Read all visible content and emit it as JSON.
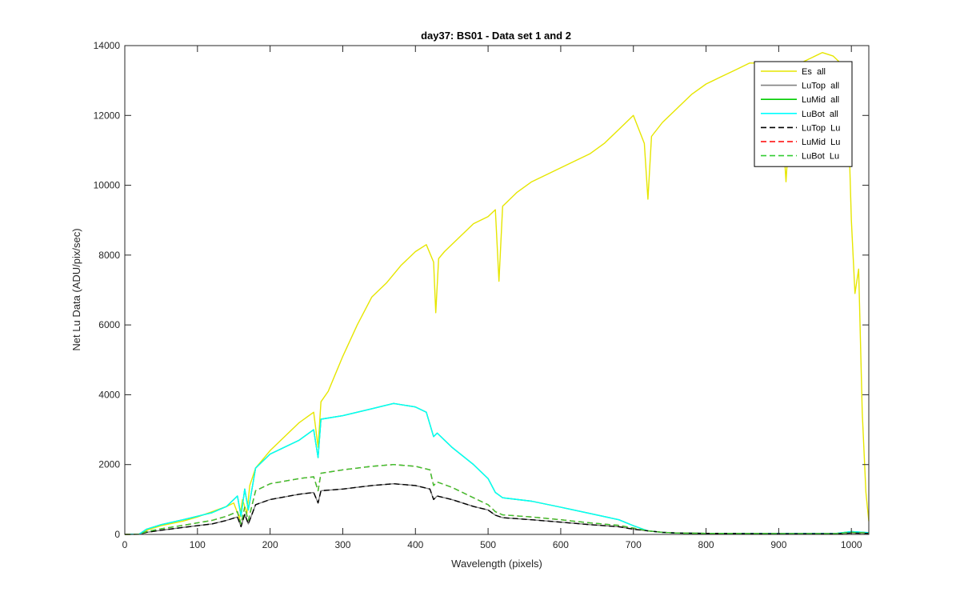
{
  "chart_data": {
    "type": "line",
    "title": "day37: BS01 - Data set 1 and 2",
    "xlabel": "Wavelength (pixels)",
    "ylabel": "Net Lu Data (ADU/pix/sec)",
    "xlim": [
      0,
      1024
    ],
    "ylim": [
      0,
      14000
    ],
    "xticks": [
      0,
      100,
      200,
      300,
      400,
      500,
      600,
      700,
      800,
      900,
      1000
    ],
    "yticks": [
      0,
      2000,
      4000,
      6000,
      8000,
      10000,
      12000,
      14000
    ],
    "grid": false,
    "legend_position": "top-right",
    "series": [
      {
        "name": "Es  all",
        "color": "#e6e600",
        "style": "solid",
        "x": [
          0,
          20,
          30,
          50,
          80,
          100,
          120,
          140,
          150,
          158,
          162,
          168,
          172,
          180,
          200,
          220,
          240,
          260,
          266,
          270,
          280,
          290,
          300,
          320,
          340,
          360,
          380,
          400,
          415,
          425,
          428,
          432,
          440,
          460,
          480,
          500,
          510,
          515,
          520,
          540,
          560,
          580,
          600,
          620,
          640,
          660,
          680,
          700,
          715,
          720,
          725,
          740,
          760,
          780,
          800,
          820,
          840,
          860,
          880,
          900,
          910,
          920,
          940,
          960,
          975,
          985,
          995,
          1000,
          1005,
          1010,
          1015,
          1020,
          1024
        ],
        "y": [
          0,
          10,
          120,
          250,
          380,
          500,
          650,
          800,
          900,
          450,
          1000,
          600,
          1400,
          1900,
          2400,
          2800,
          3200,
          3500,
          2500,
          3800,
          4100,
          4600,
          5100,
          6000,
          6800,
          7200,
          7700,
          8100,
          8300,
          7800,
          6350,
          7900,
          8100,
          8500,
          8900,
          9100,
          9300,
          7250,
          9400,
          9800,
          10100,
          10300,
          10500,
          10700,
          10900,
          11200,
          11600,
          12000,
          11200,
          9600,
          11400,
          11800,
          12200,
          12600,
          12900,
          13100,
          13300,
          13500,
          13500,
          13500,
          10100,
          13400,
          13600,
          13800,
          13700,
          13500,
          12500,
          9000,
          6900,
          7600,
          3500,
          1200,
          380
        ]
      },
      {
        "name": "LuTop  all",
        "color": "#808080",
        "style": "solid",
        "x": [
          0,
          20,
          30,
          50,
          80,
          100,
          120,
          140,
          155,
          160,
          165,
          170,
          180,
          200,
          240,
          260,
          266,
          270,
          300,
          340,
          370,
          400,
          420,
          425,
          430,
          450,
          480,
          500,
          510,
          520,
          560,
          600,
          640,
          680,
          700,
          720,
          740,
          760,
          800,
          900,
          980,
          1000,
          1024
        ],
        "y": [
          0,
          5,
          60,
          120,
          200,
          250,
          300,
          400,
          500,
          220,
          580,
          300,
          850,
          1000,
          1150,
          1200,
          900,
          1250,
          1300,
          1400,
          1450,
          1400,
          1300,
          1000,
          1100,
          1000,
          800,
          700,
          550,
          480,
          420,
          350,
          280,
          220,
          150,
          100,
          60,
          40,
          30,
          20,
          20,
          40,
          30
        ]
      },
      {
        "name": "LuMid  all",
        "color": "#00cc00",
        "style": "solid",
        "x": [
          0,
          20,
          30,
          50,
          80,
          100,
          120,
          140,
          155,
          160,
          165,
          170,
          180,
          200,
          240,
          260,
          266,
          270,
          300,
          340,
          370,
          400,
          415,
          425,
          430,
          450,
          480,
          500,
          510,
          520,
          560,
          600,
          640,
          680,
          700,
          720,
          740,
          760,
          800,
          900,
          980,
          1000,
          1024
        ],
        "y": [
          0,
          10,
          150,
          280,
          420,
          520,
          620,
          800,
          1100,
          520,
          1300,
          700,
          1900,
          2300,
          2700,
          3000,
          2200,
          3300,
          3400,
          3600,
          3750,
          3650,
          3500,
          2800,
          2900,
          2500,
          2000,
          1600,
          1200,
          1050,
          950,
          780,
          600,
          420,
          250,
          100,
          60,
          40,
          30,
          30,
          30,
          80,
          50
        ]
      },
      {
        "name": "LuBot  all",
        "color": "#00ffff",
        "style": "solid",
        "x": [
          0,
          20,
          30,
          50,
          80,
          100,
          120,
          140,
          155,
          160,
          165,
          170,
          180,
          200,
          240,
          260,
          266,
          270,
          300,
          340,
          370,
          400,
          415,
          425,
          430,
          450,
          480,
          500,
          510,
          520,
          560,
          600,
          640,
          680,
          700,
          720,
          740,
          760,
          800,
          900,
          980,
          1000,
          1024
        ],
        "y": [
          0,
          10,
          150,
          280,
          420,
          520,
          620,
          800,
          1100,
          520,
          1300,
          700,
          1900,
          2300,
          2700,
          3000,
          2200,
          3300,
          3400,
          3600,
          3750,
          3650,
          3500,
          2800,
          2900,
          2500,
          2000,
          1600,
          1200,
          1050,
          950,
          780,
          600,
          420,
          250,
          100,
          60,
          40,
          30,
          30,
          30,
          80,
          50
        ]
      },
      {
        "name": "LuTop  Lu",
        "color": "#000000",
        "style": "dashed",
        "x": [
          0,
          20,
          30,
          50,
          80,
          100,
          120,
          140,
          155,
          160,
          165,
          170,
          180,
          200,
          240,
          260,
          266,
          270,
          300,
          340,
          370,
          400,
          420,
          425,
          430,
          450,
          480,
          500,
          510,
          520,
          560,
          600,
          640,
          680,
          700,
          720,
          740,
          760,
          800,
          900,
          980,
          1000,
          1024
        ],
        "y": [
          0,
          5,
          60,
          120,
          200,
          250,
          300,
          400,
          500,
          220,
          580,
          300,
          850,
          1000,
          1150,
          1200,
          900,
          1250,
          1300,
          1400,
          1450,
          1400,
          1300,
          1000,
          1100,
          1000,
          800,
          700,
          550,
          480,
          420,
          350,
          280,
          220,
          150,
          100,
          60,
          40,
          30,
          20,
          20,
          40,
          30
        ]
      },
      {
        "name": "LuMid  Lu",
        "color": "#ff0000",
        "style": "dashed",
        "x": [
          0,
          20,
          30,
          50,
          80,
          100,
          120,
          140,
          155,
          160,
          165,
          170,
          180,
          200,
          240,
          260,
          266,
          270,
          300,
          340,
          370,
          400,
          420,
          425,
          430,
          450,
          480,
          500,
          510,
          520,
          560,
          600,
          640,
          680,
          700,
          720,
          740,
          760,
          800,
          900,
          980,
          1000,
          1024
        ],
        "y": [
          0,
          8,
          80,
          160,
          260,
          330,
          400,
          520,
          650,
          300,
          780,
          400,
          1250,
          1450,
          1600,
          1650,
          1250,
          1750,
          1850,
          1950,
          2000,
          1950,
          1850,
          1400,
          1500,
          1350,
          1050,
          850,
          650,
          560,
          500,
          420,
          330,
          260,
          180,
          100,
          60,
          40,
          30,
          25,
          25,
          60,
          40
        ]
      },
      {
        "name": "LuBot  Lu",
        "color": "#33cc33",
        "style": "dashed",
        "x": [
          0,
          20,
          30,
          50,
          80,
          100,
          120,
          140,
          155,
          160,
          165,
          170,
          180,
          200,
          240,
          260,
          266,
          270,
          300,
          340,
          370,
          400,
          420,
          425,
          430,
          450,
          480,
          500,
          510,
          520,
          560,
          600,
          640,
          680,
          700,
          720,
          740,
          760,
          800,
          900,
          980,
          1000,
          1024
        ],
        "y": [
          0,
          8,
          80,
          160,
          260,
          330,
          400,
          520,
          650,
          300,
          780,
          400,
          1250,
          1450,
          1600,
          1650,
          1250,
          1750,
          1850,
          1950,
          2000,
          1950,
          1850,
          1400,
          1500,
          1350,
          1050,
          850,
          650,
          560,
          500,
          420,
          330,
          260,
          180,
          100,
          60,
          40,
          30,
          25,
          25,
          60,
          40
        ]
      }
    ]
  }
}
